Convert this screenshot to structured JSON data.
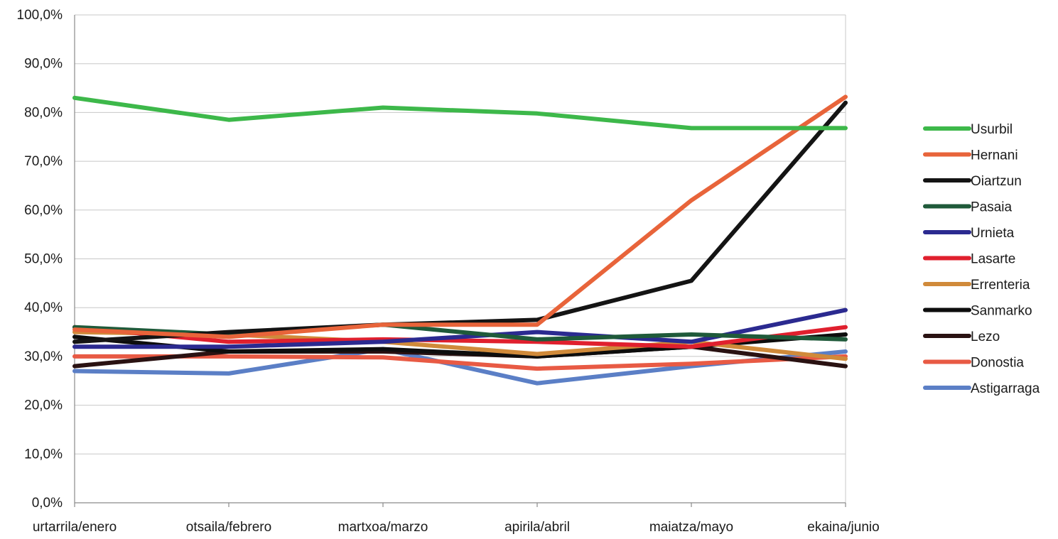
{
  "chart_data": {
    "type": "line",
    "title": "",
    "xlabel": "",
    "ylabel": "",
    "categories": [
      "urtarrila/enero",
      "otsaila/febrero",
      "martxoa/marzo",
      "apirila/abril",
      "maiatza/mayo",
      "ekaina/junio"
    ],
    "ylim": [
      0,
      100
    ],
    "y_ticks": [
      "0,0%",
      "10,0%",
      "20,0%",
      "30,0%",
      "40,0%",
      "50,0%",
      "60,0%",
      "70,0%",
      "80,0%",
      "90,0%",
      "100,0%"
    ],
    "grid": "horizontal",
    "legend_position": "right",
    "series": [
      {
        "name": "Usurbil",
        "color": "#3db84a",
        "values": [
          83.0,
          78.5,
          81.0,
          79.8,
          76.8,
          76.8
        ]
      },
      {
        "name": "Hernani",
        "color": "#e8643a",
        "values": [
          35.5,
          34.0,
          36.5,
          36.5,
          62.0,
          83.2
        ]
      },
      {
        "name": "Oiartzun",
        "color": "#141414",
        "values": [
          33.0,
          35.0,
          36.5,
          37.5,
          45.5,
          82.0
        ]
      },
      {
        "name": "Pasaia",
        "color": "#1f5a3a",
        "values": [
          36.0,
          34.5,
          36.5,
          33.5,
          34.5,
          33.5
        ]
      },
      {
        "name": "Urnieta",
        "color": "#2b2a90",
        "values": [
          32.0,
          32.0,
          33.0,
          35.0,
          33.0,
          39.5
        ]
      },
      {
        "name": "Lasarte",
        "color": "#e0202e",
        "values": [
          36.0,
          33.0,
          33.5,
          33.0,
          32.0,
          36.0
        ]
      },
      {
        "name": "Errenteria",
        "color": "#d08a3a",
        "values": [
          35.0,
          34.5,
          33.0,
          30.5,
          33.0,
          29.5
        ]
      },
      {
        "name": "Sanmarko",
        "color": "#0d0d0d",
        "values": [
          34.0,
          31.0,
          31.5,
          30.0,
          32.0,
          34.5
        ]
      },
      {
        "name": "Lezo",
        "color": "#2a1212",
        "values": [
          28.0,
          31.0,
          31.0,
          30.0,
          32.0,
          28.0
        ]
      },
      {
        "name": "Donostia",
        "color": "#e85a44",
        "values": [
          30.0,
          30.0,
          29.8,
          27.5,
          28.5,
          30.0
        ]
      },
      {
        "name": "Astigarraga",
        "color": "#5b7fc6",
        "values": [
          27.0,
          26.5,
          31.5,
          24.5,
          28.0,
          31.0
        ]
      }
    ]
  }
}
